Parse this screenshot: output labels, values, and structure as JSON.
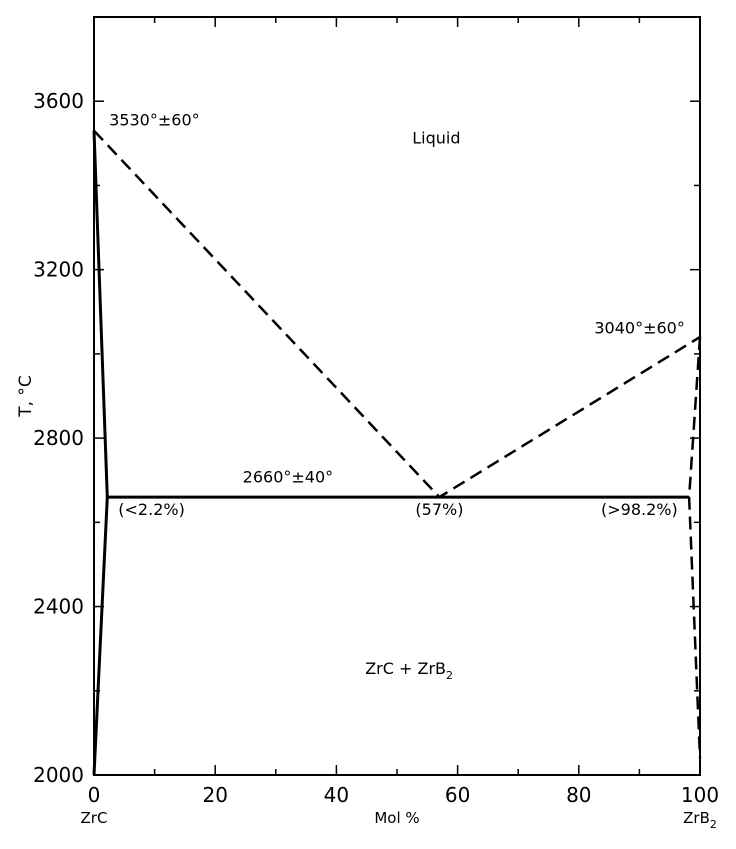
{
  "chart_data": {
    "type": "line",
    "xlabel": "Mol %",
    "ylabel": "T, °C",
    "xlim": [
      0,
      100
    ],
    "ylim": [
      2000,
      3800
    ],
    "x_ticks": [
      0,
      20,
      40,
      60,
      80,
      100
    ],
    "y_ticks": [
      2000,
      2400,
      2800,
      3200,
      3600
    ],
    "x_end_labels": {
      "left": "ZrC",
      "right_base": "ZrB",
      "right_sub": "2"
    },
    "series": [
      {
        "style": "solid",
        "points": [
          [
            0,
            3530
          ],
          [
            2.2,
            2660
          ],
          [
            0,
            2000
          ]
        ]
      },
      {
        "style": "solid",
        "points": [
          [
            2.2,
            2660
          ],
          [
            98.2,
            2660
          ]
        ]
      },
      {
        "style": "dashed",
        "points": [
          [
            0,
            3530
          ],
          [
            57,
            2660
          ],
          [
            100,
            3040
          ]
        ]
      },
      {
        "style": "dashed",
        "points": [
          [
            100,
            3040
          ],
          [
            98.2,
            2660
          ],
          [
            100,
            2040
          ]
        ]
      }
    ],
    "annotations": {
      "liquid": {
        "text": "Liquid",
        "x": 56.5,
        "y": 3500
      },
      "zrc_melt": {
        "text": "3530°±60°",
        "x": 2.5,
        "y": 3542
      },
      "zrb2_melt": {
        "text": "3040°±60°",
        "x": 97.5,
        "y": 3049
      },
      "eutectic_temp": {
        "text": "2660°±40°",
        "x": 32,
        "y": 2695
      },
      "left_solubility": {
        "text": "(<2.2%)",
        "x": 9.5,
        "y": 2617
      },
      "eutectic_comp": {
        "text": "(57%)",
        "x": 57,
        "y": 2617
      },
      "right_solubility": {
        "text": "(>98.2%)",
        "x": 90,
        "y": 2617
      },
      "two_phase": {
        "text_base": "ZrC + ZrB",
        "text_sub": "2",
        "x": 52,
        "y": 2240
      }
    }
  }
}
